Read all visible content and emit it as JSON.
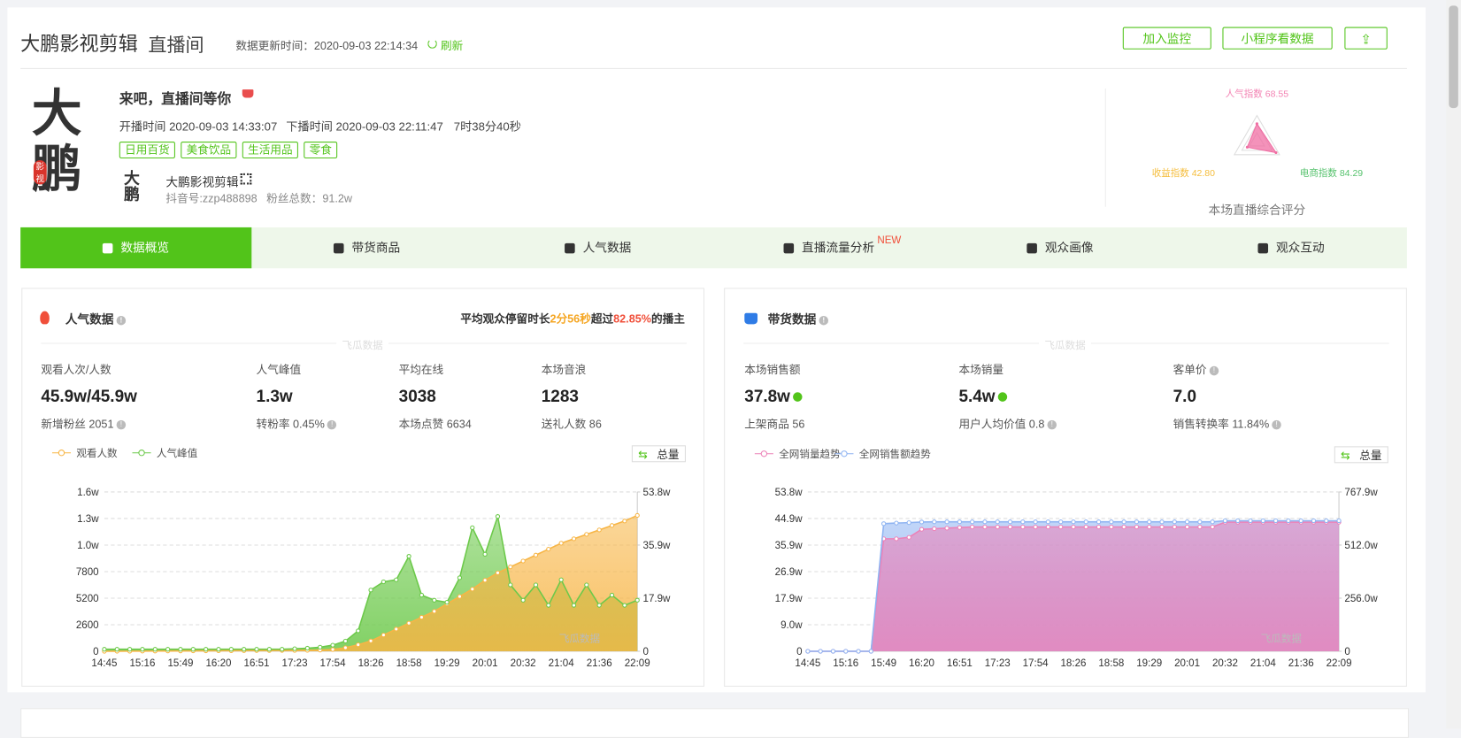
{
  "header": {
    "title": "大鹏影视剪辑",
    "subtitle": "直播间",
    "update_time": "数据更新时间：2020-09-03 22:14:34",
    "refresh": "刷新",
    "buttons": [
      "加入监控",
      "小程序看数据"
    ]
  },
  "room": {
    "logo": "大鹏",
    "seal": "影视",
    "heading": "来吧，直播间等你",
    "start": "开播时间 2020-09-03 14:33:07",
    "end": "下播时间 2020-09-03 22:11:47",
    "duration": "7时38分40秒",
    "tags": [
      "日用百货",
      "美食饮品",
      "生活用品",
      "零食"
    ],
    "anchor": "大鹏影视剪辑",
    "douyin_id": "抖音号:zzp488898",
    "fans": "粉丝总数：91.2w"
  },
  "score": {
    "caption": "本场直播综合评分",
    "chart_data": {
      "type": "radar",
      "categories": [
        "人气指数",
        "电商指数",
        "收益指数"
      ],
      "values": [
        68.55,
        84.29,
        42.8
      ],
      "value_labels": [
        "68.55",
        "84.29",
        "42.80"
      ],
      "colors": [
        "#f383b3",
        "#56c26d",
        "#f5bd3c"
      ],
      "color": "#f06ea3",
      "rlim": [
        0,
        100
      ]
    }
  },
  "tabs": {
    "items": [
      "数据概览",
      "带货商品",
      "人气数据",
      "直播流量分析",
      "观众画像",
      "观众互动"
    ],
    "active": 0,
    "badge": "NEW"
  },
  "popularity": {
    "title": "人气数据",
    "summary": [
      "平均观众停留时长",
      "2分56秒",
      "超过",
      "82.85%",
      "的播主"
    ],
    "watermark": "飞瓜数据",
    "total": "总量",
    "stats": [
      {
        "label": "观看人次/人数",
        "value": "45.9w/45.9w",
        "sub": "新增粉丝 2051"
      },
      {
        "label": "人气峰值",
        "value": "1.3w",
        "sub": "转粉率 0.45%"
      },
      {
        "label": "平均在线",
        "value": "3038",
        "sub": "本场点赞 6634"
      },
      {
        "label": "本场音浪",
        "value": "1283",
        "sub": "送礼人数 86"
      }
    ],
    "chart_data": {
      "type": "line",
      "categories": [
        "14:45",
        null,
        null,
        "15:16",
        null,
        null,
        "15:49",
        null,
        null,
        "16:20",
        null,
        null,
        "16:51",
        null,
        null,
        "17:23",
        null,
        null,
        "17:54",
        null,
        null,
        "18:26",
        null,
        null,
        "18:58",
        null,
        null,
        "19:29",
        null,
        null,
        "20:01",
        null,
        null,
        "20:32",
        null,
        null,
        "21:04",
        null,
        null,
        "21:36",
        null,
        null,
        "22:09"
      ],
      "series": [
        {
          "name": "观看人数",
          "color": "#f7b545",
          "axis": "y2",
          "values": [
            0,
            200,
            400,
            600,
            800,
            1000,
            1200,
            1400,
            1600,
            1800,
            2000,
            2200,
            2400,
            2600,
            2800,
            3000,
            3500,
            4000,
            6000,
            12000,
            22000,
            35000,
            55000,
            75000,
            95000,
            115000,
            135000,
            160000,
            185000,
            210000,
            240000,
            265000,
            285000,
            305000,
            325000,
            345000,
            365000,
            380000,
            395000,
            410000,
            425000,
            440000,
            459000
          ]
        },
        {
          "name": "人气峰值",
          "color": "#6cc94a",
          "values": [
            200,
            200,
            200,
            200,
            200,
            200,
            200,
            200,
            200,
            200,
            200,
            200,
            200,
            200,
            200,
            250,
            300,
            400,
            600,
            1000,
            2000,
            6000,
            6800,
            7000,
            9300,
            5500,
            5000,
            4800,
            7200,
            12100,
            9500,
            13200,
            6500,
            5000,
            6500,
            4500,
            7000,
            4500,
            6500,
            4500,
            5500,
            4500,
            5000
          ]
        }
      ],
      "ylim": [
        0,
        15600
      ],
      "yticks": [
        0,
        2600,
        5200,
        7800,
        {
          "value": 10400,
          "label": "1.0w"
        },
        {
          "value": 13000,
          "label": "1.3w"
        },
        {
          "value": 15600,
          "label": "1.6w"
        }
      ],
      "y2lim": [
        0,
        538200
      ],
      "y2ticks": [
        0,
        {
          "value": 179400,
          "label": "17.9w"
        },
        {
          "value": 358800,
          "label": "35.9w"
        },
        {
          "value": 538200,
          "label": "53.8w"
        }
      ],
      "grid": true
    }
  },
  "sales": {
    "title": "带货数据",
    "watermark": "飞瓜数据",
    "total": "总量",
    "stats": [
      {
        "label": "本场销售额",
        "value": "37.8w",
        "sub": "上架商品 56"
      },
      {
        "label": "本场销量",
        "value": "5.4w",
        "sub": "用户人均价值 0.8"
      },
      {
        "label": "客单价",
        "value": "7.0",
        "sub": "销售转换率 11.84%"
      }
    ],
    "chart_data": {
      "type": "line",
      "categories": [
        "14:45",
        null,
        null,
        "15:16",
        null,
        null,
        "15:49",
        null,
        null,
        "16:20",
        null,
        null,
        "16:51",
        null,
        null,
        "17:23",
        null,
        null,
        "17:54",
        null,
        null,
        "18:26",
        null,
        null,
        "18:58",
        null,
        null,
        "19:29",
        null,
        null,
        "20:01",
        null,
        null,
        "20:32",
        null,
        null,
        "21:04",
        null,
        null,
        "21:36",
        null,
        null,
        "22:09"
      ],
      "series": [
        {
          "name": "全网销量趋势",
          "color": "#ec82b8",
          "values": [
            0,
            0,
            0,
            0,
            0,
            0,
            380000,
            380000,
            385000,
            412000,
            414000,
            416000,
            418000,
            420000,
            420000,
            420000,
            420000,
            420000,
            420000,
            420000,
            420000,
            420000,
            420000,
            420000,
            420000,
            420000,
            420000,
            420000,
            420000,
            420000,
            420000,
            420000,
            420000,
            436000,
            436000,
            436000,
            436000,
            436000,
            436000,
            436000,
            436000,
            436000,
            436000
          ]
        },
        {
          "name": "全网销售额趋势",
          "color": "#8fb4f2",
          "axis": "y2",
          "values": [
            0,
            0,
            0,
            0,
            0,
            0,
            6150000,
            6180000,
            6200000,
            6230000,
            6240000,
            6240000,
            6240000,
            6240000,
            6240000,
            6240000,
            6240000,
            6240000,
            6240000,
            6240000,
            6240000,
            6240000,
            6240000,
            6240000,
            6240000,
            6240000,
            6240000,
            6240000,
            6240000,
            6240000,
            6240000,
            6240000,
            6240000,
            6290000,
            6290000,
            6290000,
            6290000,
            6290000,
            6290000,
            6290000,
            6290000,
            6290000,
            6290000
          ]
        }
      ],
      "ylim": [
        0,
        538200
      ],
      "yticks": [
        0,
        {
          "value": 89700,
          "label": "9.0w"
        },
        {
          "value": 179400,
          "label": "17.9w"
        },
        {
          "value": 269100,
          "label": "26.9w"
        },
        {
          "value": 358800,
          "label": "35.9w"
        },
        {
          "value": 448500,
          "label": "44.9w"
        },
        {
          "value": 538200,
          "label": "53.8w"
        }
      ],
      "y2lim": [
        0,
        7679000
      ],
      "y2ticks": [
        0,
        {
          "value": 2560000,
          "label": "256.0w"
        },
        {
          "value": 5120000,
          "label": "512.0w"
        },
        {
          "value": 7679000,
          "label": "767.9w"
        }
      ],
      "grid": true
    }
  }
}
